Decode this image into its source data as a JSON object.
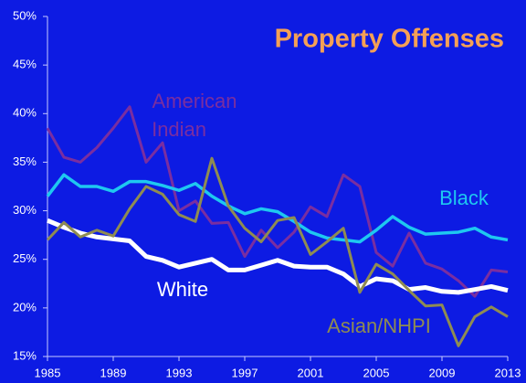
{
  "chart_data": {
    "type": "line",
    "title": "Property Offenses",
    "x": [
      1985,
      1986,
      1987,
      1988,
      1989,
      1990,
      1991,
      1992,
      1993,
      1994,
      1995,
      1996,
      1997,
      1998,
      1999,
      2000,
      2001,
      2002,
      2003,
      2004,
      2005,
      2006,
      2007,
      2008,
      2009,
      2010,
      2011,
      2012,
      2013
    ],
    "series": [
      {
        "name": "American Indian",
        "color": "#7a2ea0",
        "values": [
          38.5,
          35.5,
          35,
          36.5,
          38.5,
          40.7,
          35,
          37,
          30,
          31,
          28.7,
          28.8,
          25.3,
          28,
          26.2,
          27.8,
          30.4,
          29.4,
          33.7,
          32.5,
          25.7,
          24.3,
          27.7,
          24.6,
          24,
          22.8,
          21.2,
          23.9,
          23.7
        ]
      },
      {
        "name": "Black",
        "color": "#1ec8f0",
        "values": [
          31.5,
          33.7,
          32.5,
          32.5,
          32,
          33,
          33,
          32.6,
          32.1,
          32.8,
          31.5,
          30.5,
          29.7,
          30.2,
          29.9,
          28.9,
          27.8,
          27.2,
          27,
          26.8,
          28,
          29.4,
          28.3,
          27.6,
          27.7,
          27.8,
          28.2,
          27.3,
          27
        ]
      },
      {
        "name": "White",
        "color": "#ffffff",
        "values": [
          29,
          28.3,
          27.7,
          27.3,
          27.1,
          26.9,
          25.3,
          24.9,
          24.2,
          24.6,
          25,
          23.9,
          23.9,
          24.4,
          24.9,
          24.3,
          24.2,
          24.2,
          23.5,
          22.2,
          23,
          22.8,
          21.9,
          22.1,
          21.7,
          21.6,
          21.9,
          22.2,
          21.8
        ]
      },
      {
        "name": "Asian/NHPI",
        "color": "#8f8c52",
        "values": [
          27,
          28.8,
          27.3,
          28,
          27.4,
          30.2,
          32.5,
          31.7,
          29.6,
          28.9,
          35.4,
          30.5,
          28.2,
          26.8,
          29,
          29.3,
          25.5,
          26.8,
          28.2,
          21.6,
          24.5,
          23.5,
          21.8,
          20.2,
          20.3,
          16.1,
          19.1,
          20.1,
          19.1
        ]
      }
    ],
    "xlim": [
      1985,
      2013
    ],
    "xticks": [
      1985,
      1989,
      1993,
      1997,
      2001,
      2005,
      2009,
      2013
    ],
    "ylim": [
      15,
      50
    ],
    "yticks": [
      {
        "value": 15,
        "label": "15%"
      },
      {
        "value": 20,
        "label": "20%"
      },
      {
        "value": 25,
        "label": "25%"
      },
      {
        "value": 30,
        "label": "30%"
      },
      {
        "value": 35,
        "label": "35%"
      },
      {
        "value": 40,
        "label": "40%"
      },
      {
        "value": 45,
        "label": "45%"
      },
      {
        "value": 50,
        "label": "50%"
      }
    ]
  }
}
